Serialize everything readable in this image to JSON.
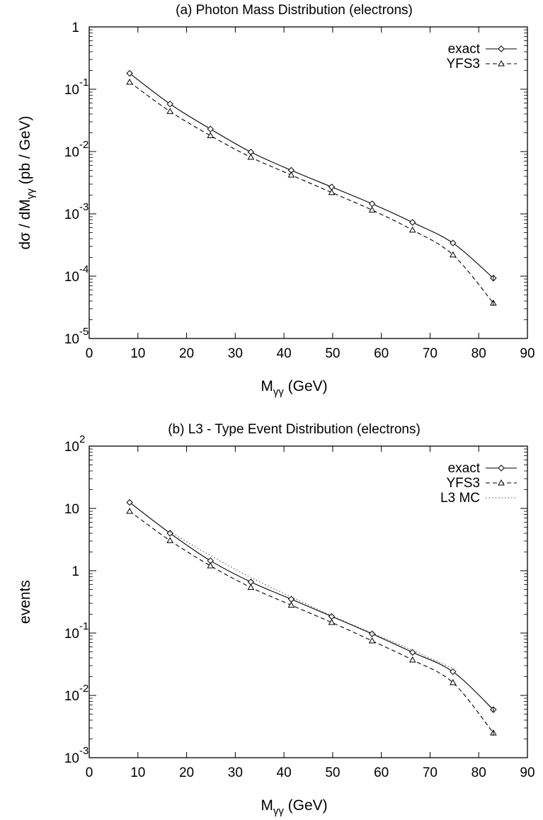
{
  "chart_data": [
    {
      "type": "line",
      "title": "(a)  Photon Mass Distribution (electrons)",
      "xlabel": {
        "main": "M",
        "sub": "γγ",
        "unit": "(GeV)"
      },
      "ylabel": {
        "main": "dσ / dM",
        "sub": "γγ",
        "unit": "(pb / GeV)"
      },
      "xlim": [
        0,
        90
      ],
      "ylim": [
        1e-05,
        1
      ],
      "yscale": "log",
      "grid": false,
      "legend_position": "top-right",
      "x_ticks": [
        "0",
        "10",
        "20",
        "30",
        "40",
        "50",
        "60",
        "70",
        "80",
        "90"
      ],
      "y_ticks": [
        {
          "base": "10",
          "exp": "-5"
        },
        {
          "base": "10",
          "exp": "-4"
        },
        {
          "base": "10",
          "exp": "-3"
        },
        {
          "base": "10",
          "exp": "-2"
        },
        {
          "base": "10",
          "exp": "-1"
        },
        {
          "base": "1",
          "exp": ""
        }
      ],
      "x": [
        8.3,
        16.6,
        24.9,
        33.2,
        41.5,
        49.8,
        58.1,
        66.4,
        74.7,
        83.0
      ],
      "series": [
        {
          "name": "exact",
          "style": "solid",
          "marker": "diamond",
          "values": [
            0.18,
            0.058,
            0.023,
            0.0098,
            0.005,
            0.0027,
            0.00145,
            0.00073,
            0.00034,
            9.3e-05
          ]
        },
        {
          "name": "YFS3",
          "style": "dashed",
          "marker": "triangle",
          "values": [
            0.13,
            0.044,
            0.018,
            0.0081,
            0.0042,
            0.0022,
            0.00115,
            0.00055,
            0.00022,
            3.7e-05
          ]
        }
      ]
    },
    {
      "type": "line",
      "title": "(b)  L3 - Type Event Distribution (electrons)",
      "xlabel": {
        "main": "M",
        "sub": "γγ",
        "unit": "(GeV)"
      },
      "ylabel": {
        "main": "events",
        "sub": "",
        "unit": ""
      },
      "xlim": [
        0,
        90
      ],
      "ylim": [
        0.001,
        100
      ],
      "yscale": "log",
      "grid": false,
      "legend_position": "top-right",
      "x_ticks": [
        "0",
        "10",
        "20",
        "30",
        "40",
        "50",
        "60",
        "70",
        "80",
        "90"
      ],
      "y_ticks": [
        {
          "base": "10",
          "exp": "-3"
        },
        {
          "base": "10",
          "exp": "-2"
        },
        {
          "base": "10",
          "exp": "-1"
        },
        {
          "base": "1",
          "exp": ""
        },
        {
          "base": "10",
          "exp": ""
        },
        {
          "base": "10",
          "exp": "2"
        }
      ],
      "x": [
        8.3,
        16.6,
        24.9,
        33.2,
        41.5,
        49.8,
        58.1,
        66.4,
        74.7,
        83.0
      ],
      "series": [
        {
          "name": "exact",
          "style": "solid",
          "marker": "diamond",
          "values": [
            12.5,
            4.0,
            1.45,
            0.66,
            0.35,
            0.185,
            0.097,
            0.049,
            0.024,
            0.0059
          ]
        },
        {
          "name": "YFS3",
          "style": "dashed",
          "marker": "triangle",
          "values": [
            9.0,
            3.05,
            1.2,
            0.54,
            0.28,
            0.148,
            0.075,
            0.037,
            0.016,
            0.0025
          ]
        },
        {
          "name": "L3 MC",
          "style": "dotted",
          "marker": "none",
          "x": [
            16.6,
            24.9,
            33.2,
            41.5,
            49.8,
            58.1,
            66.4,
            74.7
          ],
          "values": [
            4.2,
            1.75,
            0.78,
            0.38,
            0.19,
            0.1,
            0.053,
            0.027
          ]
        }
      ]
    }
  ]
}
